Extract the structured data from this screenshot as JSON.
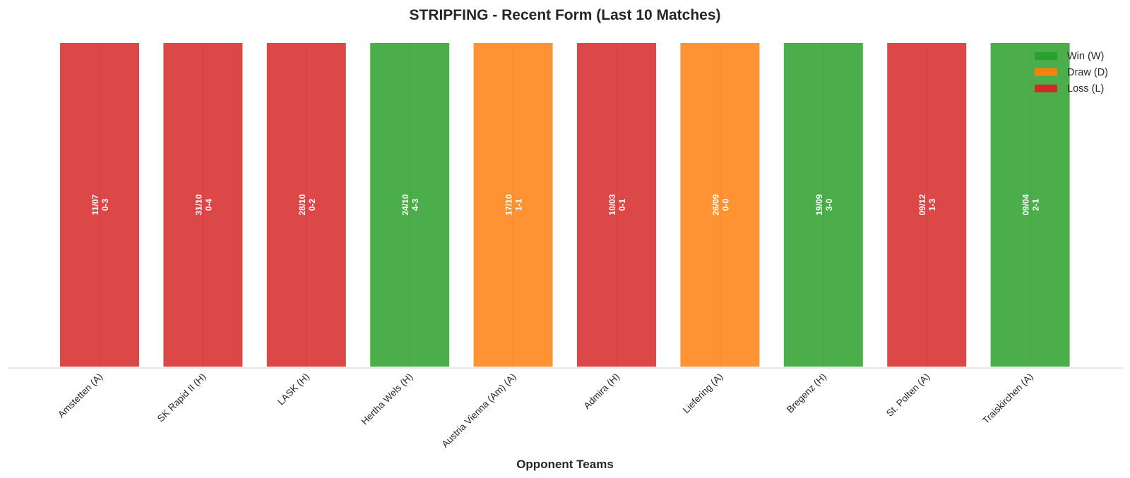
{
  "chart_data": {
    "type": "bar",
    "title": "STRIPFING - Recent Form (Last 10 Matches)",
    "xlabel": "Opponent Teams",
    "ylabel": "",
    "categories": [
      "Amstetten (A)",
      "SK Rapid II (H)",
      "LASK (H)",
      "Hertha Wels (H)",
      "Austria Vienna (Am) (A)",
      "Admira (H)",
      "Liefering (A)",
      "Bregenz (H)",
      "St. Polten (A)",
      "Traiskirchen (A)"
    ],
    "values": [
      1,
      1,
      1,
      1,
      1,
      1,
      1,
      1,
      1,
      1
    ],
    "results": [
      "L",
      "L",
      "L",
      "W",
      "D",
      "L",
      "D",
      "W",
      "L",
      "W"
    ],
    "dates": [
      "11/07",
      "31/10",
      "28/10",
      "24/10",
      "17/10",
      "10/03",
      "26/09",
      "19/09",
      "09/12",
      "09/04"
    ],
    "scores": [
      "0-3",
      "0-4",
      "0-2",
      "4-3",
      "1-1",
      "0-1",
      "0-0",
      "3-0",
      "1-3",
      "2-1"
    ],
    "ylim": [
      0,
      1.05
    ],
    "grid": false,
    "legend": {
      "placement": "top-right",
      "entries": [
        {
          "key": "W",
          "label": "Win (W)",
          "color": "#2ca02c"
        },
        {
          "key": "D",
          "label": "Draw (D)",
          "color": "#ff7f0e"
        },
        {
          "key": "L",
          "label": "Loss (L)",
          "color": "#d62728"
        }
      ]
    }
  }
}
